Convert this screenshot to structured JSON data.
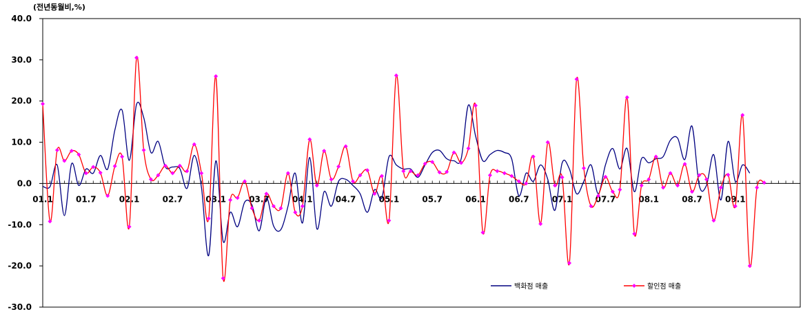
{
  "chart_data": {
    "type": "line",
    "unit_label": "(전년동월비,%)",
    "ylim": [
      -30,
      40
    ],
    "y_ticks": [
      40,
      30,
      20,
      10,
      0,
      -10,
      -20,
      -30
    ],
    "y_tick_labels": [
      "40.0",
      "30.0",
      "20.0",
      "10.0",
      "0.0",
      "-10.0",
      "-20.0",
      "-30.0"
    ],
    "x_range": [
      0,
      105
    ],
    "x_ticks": [
      {
        "x": 0,
        "label": "01.1"
      },
      {
        "x": 6,
        "label": "01.7"
      },
      {
        "x": 12,
        "label": "02.1"
      },
      {
        "x": 18,
        "label": "02.7"
      },
      {
        "x": 24,
        "label": "03.1"
      },
      {
        "x": 30,
        "label": "03.7"
      },
      {
        "x": 36,
        "label": "04.1"
      },
      {
        "x": 42,
        "label": "04.7"
      },
      {
        "x": 48,
        "label": "05.1"
      },
      {
        "x": 54,
        "label": "05.7"
      },
      {
        "x": 60,
        "label": "06.1"
      },
      {
        "x": 66,
        "label": "06.7"
      },
      {
        "x": 72,
        "label": "07.1"
      },
      {
        "x": 78,
        "label": "07.7"
      },
      {
        "x": 84,
        "label": "08.1"
      },
      {
        "x": 90,
        "label": "08.7"
      },
      {
        "x": 96,
        "label": "09.1"
      }
    ],
    "grid": false,
    "legend_position": "bottom-right",
    "series": [
      {
        "name": "백화점 매출",
        "color": "#000080",
        "marker": false,
        "values": [
          -0.7,
          -0.8,
          4.5,
          -7.8,
          4.8,
          -0.5,
          3.5,
          2.5,
          6.8,
          3.5,
          13.0,
          17.8,
          5.6,
          19.2,
          16.0,
          7.5,
          10.2,
          4.0,
          4.0,
          3.6,
          -1.2,
          6.8,
          -1.0,
          -17.5,
          5.5,
          -14.0,
          -7.0,
          -10.5,
          -4.5,
          -5.2,
          -11.5,
          -3.5,
          -10.3,
          -11.2,
          -5.5,
          2.5,
          -9.6,
          6.3,
          -11.0,
          -2.0,
          -5.5,
          0.5,
          1.0,
          -0.5,
          -2.5,
          -7.0,
          -1.5,
          -3.5,
          6.5,
          4.5,
          3.5,
          3.5,
          1.5,
          4.5,
          7.5,
          8.0,
          6.0,
          5.5,
          6.0,
          19.0,
          11.5,
          5.5,
          7.0,
          8.0,
          7.5,
          6.0,
          -3.0,
          2.5,
          0.5,
          4.5,
          1.0,
          -6.5,
          5.0,
          3.5,
          -2.5,
          0.5,
          4.5,
          -2.5,
          4.5,
          8.5,
          3.5,
          8.5,
          -2.0,
          6.0,
          5.0,
          6.0,
          6.5,
          10.5,
          11.0,
          5.8,
          13.9,
          -0.5,
          -0.5,
          7.0,
          -4.0,
          10.2,
          0.5,
          4.5,
          2.5
        ]
      },
      {
        "name": "할인점 매출",
        "color": "#ff0000",
        "marker_color": "#ff00ff",
        "marker": true,
        "values": [
          19.3,
          -9.2,
          8.1,
          5.5,
          7.9,
          7.0,
          2.5,
          4.0,
          2.6,
          -3.0,
          4.2,
          6.5,
          -10.5,
          30.5,
          8.1,
          1.0,
          2.0,
          4.3,
          2.5,
          4.3,
          3.0,
          9.5,
          2.5,
          -8.5,
          26.0,
          -23.0,
          -4.0,
          -3.5,
          0.5,
          -6.0,
          -9.0,
          -2.5,
          -5.5,
          -6.0,
          2.5,
          -7.0,
          -5.5,
          10.7,
          -0.5,
          7.9,
          1.0,
          4.1,
          9.0,
          0.5,
          2.0,
          3.2,
          -2.5,
          1.8,
          -9.0,
          26.2,
          3.0,
          3.0,
          2.0,
          4.8,
          5.2,
          2.7,
          2.8,
          7.5,
          5.0,
          8.5,
          18.9,
          -11.9,
          2.0,
          3.0,
          2.5,
          1.8,
          0.5,
          0.0,
          6.5,
          -9.8,
          10.0,
          -0.5,
          1.5,
          -19.3,
          25.3,
          3.7,
          -5.5,
          -3.0,
          1.6,
          -2.0,
          -1.5,
          20.9,
          -12.2,
          -0.5,
          1.0,
          6.5,
          -1.0,
          2.5,
          -0.5,
          4.7,
          -2.0,
          2.0,
          1.0,
          -9.0,
          -1.0,
          2.1,
          -5.5,
          16.6,
          -20.0,
          -1.0,
          0.2
        ]
      }
    ]
  }
}
